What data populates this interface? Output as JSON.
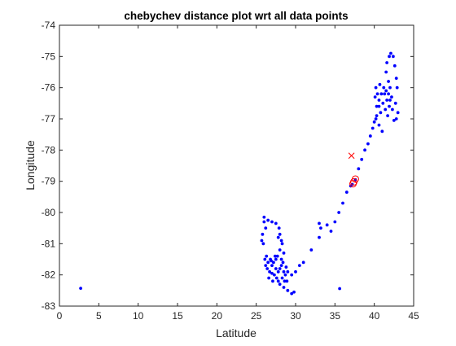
{
  "chart_data": {
    "type": "scatter",
    "title": "chebychev distance plot wrt all data points",
    "xlabel": "Latitude",
    "ylabel": "Longitude",
    "xlim": [
      0,
      45
    ],
    "ylim": [
      -83,
      -74
    ],
    "xticks": [
      0,
      5,
      10,
      15,
      20,
      25,
      30,
      35,
      40,
      45
    ],
    "yticks": [
      -83,
      -82,
      -81,
      -80,
      -79,
      -78,
      -77,
      -76,
      -75,
      -74
    ],
    "xtick_labels": [
      "0",
      "5",
      "10",
      "15",
      "20",
      "25",
      "30",
      "35",
      "40",
      "45"
    ],
    "ytick_labels": [
      "-83",
      "-82",
      "-81",
      "-80",
      "-79",
      "-78",
      "-77",
      "-76",
      "-75",
      "-74"
    ],
    "grid": false,
    "legend": "none",
    "series": [
      {
        "marker": "dot",
        "color": "#0000ff",
        "points": [
          [
            2.7,
            -82.43
          ],
          [
            35.6,
            -82.44
          ],
          [
            26.0,
            -80.15
          ],
          [
            26.0,
            -80.3
          ],
          [
            26.2,
            -80.5
          ],
          [
            25.8,
            -80.7
          ],
          [
            25.7,
            -80.9
          ],
          [
            25.9,
            -81.0
          ],
          [
            26.5,
            -80.25
          ],
          [
            27.0,
            -80.3
          ],
          [
            27.5,
            -80.35
          ],
          [
            27.9,
            -80.5
          ],
          [
            28.0,
            -80.7
          ],
          [
            28.2,
            -80.9
          ],
          [
            27.8,
            -80.8
          ],
          [
            28.3,
            -81.0
          ],
          [
            28.0,
            -81.2
          ],
          [
            28.5,
            -81.3
          ],
          [
            28.2,
            -81.5
          ],
          [
            26.3,
            -81.4
          ],
          [
            26.5,
            -81.6
          ],
          [
            26.8,
            -81.5
          ],
          [
            27.0,
            -81.7
          ],
          [
            27.2,
            -81.6
          ],
          [
            27.5,
            -81.5
          ],
          [
            26.4,
            -81.8
          ],
          [
            26.7,
            -81.9
          ],
          [
            27.0,
            -81.95
          ],
          [
            27.3,
            -82.0
          ],
          [
            27.6,
            -82.1
          ],
          [
            27.8,
            -81.9
          ],
          [
            28.0,
            -81.8
          ],
          [
            28.2,
            -81.7
          ],
          [
            28.4,
            -81.6
          ],
          [
            28.5,
            -81.9
          ],
          [
            28.7,
            -82.0
          ],
          [
            28.6,
            -82.2
          ],
          [
            27.4,
            -81.4
          ],
          [
            27.7,
            -81.4
          ],
          [
            26.2,
            -81.7
          ],
          [
            26.6,
            -82.1
          ],
          [
            27.1,
            -82.2
          ],
          [
            28.8,
            -81.75
          ],
          [
            29.0,
            -81.9
          ],
          [
            28.3,
            -82.1
          ],
          [
            28.0,
            -82.3
          ],
          [
            27.8,
            -82.2
          ],
          [
            26.9,
            -81.55
          ],
          [
            26.1,
            -81.5
          ],
          [
            27.5,
            -81.8
          ],
          [
            28.9,
            -82.2
          ],
          [
            28.5,
            -82.4
          ],
          [
            29.0,
            -82.5
          ],
          [
            29.5,
            -82.6
          ],
          [
            29.8,
            -82.55
          ],
          [
            29.5,
            -82.0
          ],
          [
            30.0,
            -81.9
          ],
          [
            30.5,
            -81.7
          ],
          [
            31.0,
            -81.6
          ],
          [
            32.0,
            -81.2
          ],
          [
            33.0,
            -80.8
          ],
          [
            33.2,
            -80.5
          ],
          [
            33.0,
            -80.35
          ],
          [
            34.0,
            -80.4
          ],
          [
            34.5,
            -80.6
          ],
          [
            35.0,
            -80.3
          ],
          [
            35.5,
            -80.0
          ],
          [
            36.0,
            -79.7
          ],
          [
            36.5,
            -79.35
          ],
          [
            37.0,
            -79.15
          ],
          [
            37.2,
            -79.1
          ],
          [
            37.6,
            -78.95
          ],
          [
            38.0,
            -78.6
          ],
          [
            38.4,
            -78.3
          ],
          [
            38.8,
            -78.0
          ],
          [
            39.2,
            -77.8
          ],
          [
            39.5,
            -77.55
          ],
          [
            39.8,
            -77.3
          ],
          [
            40.0,
            -77.1
          ],
          [
            40.3,
            -76.9
          ],
          [
            40.6,
            -76.6
          ],
          [
            40.9,
            -76.2
          ],
          [
            41.2,
            -76.0
          ],
          [
            40.2,
            -76.0
          ],
          [
            40.1,
            -76.3
          ],
          [
            40.3,
            -76.6
          ],
          [
            40.2,
            -77.0
          ],
          [
            40.6,
            -77.2
          ],
          [
            41.0,
            -77.4
          ],
          [
            40.6,
            -76.4
          ],
          [
            40.8,
            -76.8
          ],
          [
            41.1,
            -76.5
          ],
          [
            41.3,
            -76.2
          ],
          [
            41.5,
            -76.1
          ],
          [
            41.6,
            -76.4
          ],
          [
            41.8,
            -76.2
          ],
          [
            42.0,
            -76.4
          ],
          [
            42.2,
            -76.3
          ],
          [
            42.0,
            -76.0
          ],
          [
            41.8,
            -75.8
          ],
          [
            41.5,
            -75.5
          ],
          [
            41.6,
            -75.2
          ],
          [
            41.9,
            -75.0
          ],
          [
            42.1,
            -74.9
          ],
          [
            42.4,
            -75.0
          ],
          [
            42.6,
            -75.3
          ],
          [
            42.8,
            -75.7
          ],
          [
            42.9,
            -76.0
          ],
          [
            42.7,
            -76.5
          ],
          [
            43.0,
            -76.8
          ],
          [
            42.8,
            -77.0
          ],
          [
            42.5,
            -77.05
          ],
          [
            41.9,
            -76.6
          ],
          [
            42.3,
            -76.7
          ],
          [
            41.4,
            -76.7
          ],
          [
            41.7,
            -76.9
          ],
          [
            40.4,
            -76.2
          ],
          [
            40.7,
            -75.9
          ]
        ]
      },
      {
        "marker": "x",
        "color": "#ff0000",
        "points": [
          [
            37.1,
            -78.18
          ]
        ]
      },
      {
        "marker": "circle",
        "color": "#ff0000",
        "points": [
          [
            37.4,
            -79.02
          ],
          [
            37.6,
            -78.93
          ],
          [
            37.3,
            -79.08
          ]
        ]
      }
    ]
  }
}
